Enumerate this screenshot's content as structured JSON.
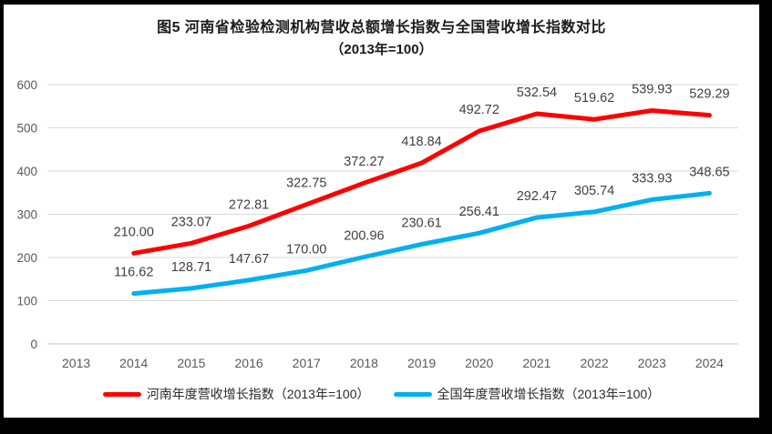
{
  "title": {
    "line1": "图5  河南省检验检测机构营收总额增长指数与全国营收增长指数对比",
    "line2": "（2013年=100）"
  },
  "colors": {
    "henan": "#ff0000",
    "national": "#00b0f0",
    "gridline": "#d9d9d9",
    "axis_line": "#c6c6c6",
    "tick_text": "#595959",
    "data_label": "#404040",
    "frame_border": "#000000"
  },
  "legend": {
    "items": [
      {
        "label": "河南年度营收增长指数（2013年=100）",
        "series": "henan"
      },
      {
        "label": "全国年度营收增长指数（2013年=100）",
        "series": "national"
      }
    ]
  },
  "chart_data": {
    "type": "line",
    "title": "图5 河南省检验检测机构营收总额增长指数与全国营收增长指数对比（2013年=100）",
    "categories": [
      "2013",
      "2014",
      "2015",
      "2016",
      "2017",
      "2018",
      "2019",
      "2020",
      "2021",
      "2022",
      "2023",
      "2024"
    ],
    "series": [
      {
        "name": "河南年度营收增长指数（2013年=100）",
        "color": "#ff0000",
        "values": [
          null,
          210.0,
          233.07,
          272.81,
          322.75,
          372.27,
          418.84,
          492.72,
          532.54,
          519.62,
          539.93,
          529.29
        ],
        "labels": [
          "",
          "210.00",
          "233.07",
          "272.81",
          "322.75",
          "372.27",
          "418.84",
          "492.72",
          "532.54",
          "519.62",
          "539.93",
          "529.29"
        ]
      },
      {
        "name": "全国年度营收增长指数（2013年=100）",
        "color": "#00b0f0",
        "values": [
          null,
          116.62,
          128.71,
          147.67,
          170.0,
          200.96,
          230.61,
          256.41,
          292.47,
          305.74,
          333.93,
          348.65
        ],
        "labels": [
          "",
          "116.62",
          "128.71",
          "147.67",
          "170.00",
          "200.96",
          "230.61",
          "256.41",
          "292.47",
          "305.74",
          "333.93",
          "348.65"
        ]
      }
    ],
    "xlabel": "",
    "ylabel": "",
    "ylim": [
      0,
      600
    ],
    "ytick_step": 100,
    "grid": "horizontal",
    "legend_position": "bottom"
  }
}
